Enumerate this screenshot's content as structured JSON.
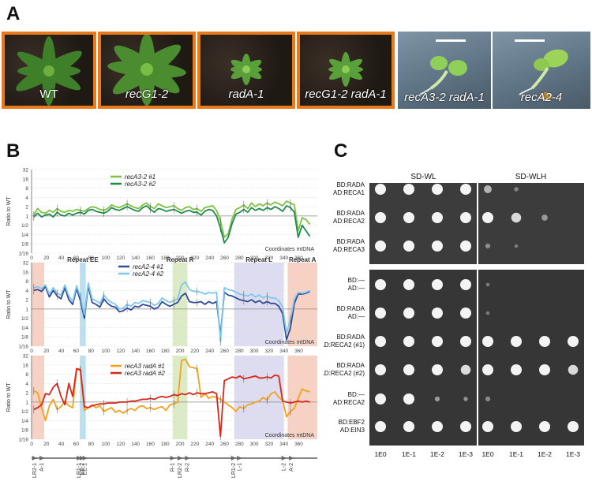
{
  "panel_a": {
    "letter": "A",
    "photos": [
      {
        "label": "WT",
        "italic": false
      },
      {
        "label": "recG1-2",
        "italic": true
      },
      {
        "label": "radA-1",
        "italic": true
      },
      {
        "label": "recG1-2 radA-1",
        "italic": true
      },
      {
        "label": "recA3-2 radA-1",
        "italic": true
      },
      {
        "label": "recA2-4",
        "italic": true
      }
    ]
  },
  "panel_b": {
    "letter": "B",
    "y_tick_labels": [
      "32",
      "16",
      "8",
      "4",
      "2",
      "1",
      "1/2",
      "1/4",
      "1/8",
      "1/16"
    ],
    "x_tick_labels": [
      "0",
      "20",
      "40",
      "60",
      "80",
      "100",
      "120",
      "140",
      "160",
      "180",
      "200",
      "220",
      "240",
      "260",
      "280",
      "300",
      "320",
      "340",
      "360"
    ],
    "y_axis_label": "Ratio to WT",
    "x_axis_label": "Coordinates mtDNA",
    "regions": [
      {
        "label": "",
        "start": 0,
        "end": 17,
        "color": "#f7d2c4"
      },
      {
        "label": "Repeat EE",
        "start": 65,
        "end": 73,
        "color": "#b8dff2"
      },
      {
        "label": "Repeat R",
        "start": 190,
        "end": 210,
        "color": "#dcebc6"
      },
      {
        "label": "Repeat L",
        "start": 273,
        "end": 340,
        "color": "#dedcf0"
      },
      {
        "label": "Repeat A",
        "start": 345,
        "end": 385,
        "color": "#f7d2c4"
      }
    ],
    "genome_markers": [
      "LR2-1",
      "A-1",
      "LR1-1",
      "EE-2",
      "EE-1",
      "R-1",
      "LR2-2",
      "R-2",
      "LR1-2",
      "L-1",
      "L-2",
      "A-2"
    ],
    "charts": [
      {
        "series": [
          {
            "name": "recA3-2 #1",
            "color": "#7cc242",
            "y": [
              0.1,
              0.8,
              0.4,
              0.3,
              0.6,
              0.4,
              0.8,
              0.5,
              0.4,
              0.6,
              0.5,
              0.7,
              0.6,
              0.5,
              0.8,
              1.0,
              0.9,
              0.7,
              0.6,
              0.8,
              1.2,
              1.0,
              0.9,
              1.1,
              1.3,
              1.1,
              0.9,
              0.8,
              1.2,
              1.4,
              1.0,
              0.8,
              1.3,
              1.1,
              0.9,
              1.0,
              1.1,
              0.8,
              0.6,
              0.9,
              1.0,
              0.7,
              0.8,
              0.5,
              0.9,
              1.0,
              1.1,
              0.6,
              -0.5,
              -2.3,
              -1.9,
              -0.3,
              0.7,
              0.9,
              1.2,
              0.8,
              1.4,
              1.0,
              1.3,
              1.1,
              1.4,
              1.2,
              1.5,
              1.3,
              1.1,
              1.6,
              1.4,
              1.2,
              -1.6,
              -0.2,
              -0.4,
              -0.9
            ]
          },
          {
            "name": "recA3-2 #2",
            "color": "#1f8a4c",
            "y": [
              -0.1,
              0.3,
              -0.1,
              0.1,
              0.2,
              -0.1,
              0.4,
              0.1,
              0.0,
              0.3,
              0.1,
              0.3,
              0.4,
              0.2,
              0.6,
              0.7,
              0.5,
              0.4,
              0.3,
              0.5,
              0.9,
              0.7,
              0.6,
              0.8,
              1.0,
              0.8,
              0.6,
              0.5,
              0.9,
              1.1,
              0.7,
              0.4,
              0.8,
              0.7,
              0.5,
              0.6,
              0.7,
              0.5,
              0.3,
              0.5,
              0.6,
              0.4,
              0.4,
              0.1,
              0.5,
              0.7,
              0.6,
              0.0,
              -1.3,
              -2.9,
              -2.3,
              -0.8,
              0.2,
              0.4,
              0.7,
              0.4,
              0.9,
              0.6,
              0.8,
              0.6,
              0.9,
              0.7,
              1.0,
              0.8,
              0.5,
              1.1,
              0.9,
              0.4,
              -2.3,
              -1.0,
              -1.6,
              -2.2
            ]
          }
        ]
      },
      {
        "series": [
          {
            "name": "recA2-4 #1",
            "color": "#2f4a9b",
            "y": [
              2.0,
              2.1,
              1.9,
              2.4,
              1.3,
              2.0,
              1.4,
              1.1,
              2.3,
              1.0,
              0.5,
              2.2,
              0.9,
              -1.0,
              2.5,
              0.7,
              0.5,
              0.2,
              1.1,
              0.6,
              0.3,
              0.2,
              -0.3,
              -0.2,
              0.1,
              -0.1,
              0.3,
              0.2,
              0.5,
              0.4,
              0.3,
              0.0,
              0.2,
              0.8,
              0.5,
              0.3,
              0.5,
              0.7,
              1.4,
              1.7,
              0.8,
              0.7,
              0.7,
              0.8,
              0.5,
              0.8,
              0.6,
              0.8,
              -2.8,
              1.8,
              1.5,
              1.4,
              1.2,
              1.0,
              0.9,
              0.8,
              1.0,
              0.7,
              0.9,
              0.6,
              0.8,
              0.6,
              0.6,
              0.3,
              -0.5,
              -3.3,
              -2.0,
              0.6,
              1.6,
              1.6,
              1.7,
              1.9
            ]
          },
          {
            "name": "recA2-4 #2",
            "color": "#7fc8ec",
            "y": [
              2.3,
              2.4,
              2.2,
              2.6,
              1.6,
              2.3,
              1.7,
              1.5,
              2.6,
              1.4,
              0.8,
              2.5,
              1.3,
              -0.6,
              2.8,
              1.1,
              0.9,
              0.6,
              1.5,
              1.0,
              0.7,
              0.5,
              0.0,
              0.1,
              0.5,
              0.3,
              0.7,
              0.6,
              0.9,
              0.8,
              0.7,
              0.4,
              0.6,
              1.2,
              0.9,
              0.7,
              0.9,
              1.1,
              2.6,
              2.9,
              2.1,
              1.9,
              1.9,
              1.8,
              1.6,
              1.8,
              1.7,
              1.8,
              -3.5,
              2.3,
              2.1,
              2.0,
              1.8,
              1.6,
              1.5,
              1.4,
              1.6,
              1.3,
              1.5,
              1.2,
              1.4,
              1.2,
              1.2,
              0.9,
              0.2,
              -2.6,
              -1.1,
              1.1,
              1.8,
              1.7,
              1.8,
              2.0
            ]
          }
        ]
      },
      {
        "series": [
          {
            "name": "recA3 radA #1",
            "color": "#f4a11c",
            "y": [
              1.2,
              1.0,
              -0.6,
              -2.0,
              -0.4,
              0.3,
              -0.8,
              -0.5,
              0.1,
              -0.4,
              -0.6,
              3.5,
              3.4,
              -0.9,
              -0.6,
              -0.3,
              -0.6,
              -0.4,
              -1.0,
              -0.8,
              -0.6,
              -1.1,
              -0.9,
              -1.2,
              -0.9,
              -0.7,
              -0.9,
              -0.5,
              -0.4,
              -0.7,
              -0.6,
              -0.8,
              -0.6,
              -0.5,
              -0.9,
              -0.3,
              -0.2,
              0.0,
              4.5,
              4.6,
              3.8,
              3.7,
              3.6,
              0.5,
              0.9,
              0.4,
              0.6,
              0.5,
              0.3,
              0.0,
              -0.3,
              -0.6,
              -1.0,
              -0.5,
              -0.7,
              -0.3,
              -0.2,
              0.0,
              0.1,
              0.5,
              0.2,
              0.9,
              1.1,
              0.5,
              0.2,
              -1.6,
              -1.0,
              -0.7,
              0.4,
              1.4,
              1.2,
              1.1
            ]
          },
          {
            "name": "recA3 radA #2",
            "color": "#d9261c",
            "y": [
              -0.8,
              -0.6,
              -0.3,
              0.9,
              0.8,
              1.6,
              2.0,
              0.6,
              -0.3,
              2.0,
              0.6,
              3.6,
              3.5,
              -0.5,
              -0.6,
              -0.4,
              -0.3,
              -0.2,
              -0.2,
              -0.1,
              -0.1,
              -0.1,
              0.0,
              0.0,
              0.0,
              0.1,
              0.1,
              0.2,
              0.3,
              0.3,
              0.4,
              0.3,
              0.5,
              0.6,
              0.5,
              0.6,
              0.8,
              0.7,
              0.9,
              0.8,
              1.0,
              0.8,
              1.0,
              0.9,
              0.9,
              1.0,
              1.1,
              0.9,
              -3.7,
              2.3,
              2.5,
              2.7,
              2.6,
              2.8,
              2.5,
              2.6,
              2.7,
              2.8,
              2.6,
              2.6,
              2.7,
              2.6,
              2.9,
              2.8,
              0.1,
              0.0,
              -0.1,
              0.0,
              0.1,
              0.0,
              0.1,
              0.0
            ]
          }
        ]
      }
    ]
  },
  "panel_c": {
    "letter": "C",
    "column_headers": [
      "SD-WL",
      "SD-WLH"
    ],
    "dilution_labels": [
      "1E0",
      "1E-1",
      "1E-2",
      "1E-3",
      "1E0",
      "1E-1",
      "1E-2",
      "1E-3"
    ],
    "rows": [
      {
        "bd": "BD:RADA",
        "ad": "AD:RECA1",
        "wl": [
          1,
          1,
          1,
          1
        ],
        "wlh": [
          0.5,
          0.15,
          0,
          0
        ]
      },
      {
        "bd": "BD:RADA",
        "ad": "AD:RECA2",
        "wl": [
          1,
          1,
          1,
          1
        ],
        "wlh": [
          1,
          0.8,
          0.3,
          0
        ]
      },
      {
        "bd": "BD:RADA",
        "ad": "AD:RECA3",
        "wl": [
          1,
          1,
          1,
          1
        ],
        "wlh": [
          0.2,
          0.1,
          0,
          0
        ]
      },
      {
        "bd": "BD:—",
        "ad": "AD:—",
        "wl": [
          1,
          1,
          1,
          1
        ],
        "wlh": [
          0.1,
          0,
          0,
          0
        ]
      },
      {
        "bd": "BD:RADA",
        "ad": "AD:—",
        "wl": [
          1,
          1,
          1,
          1
        ],
        "wlh": [
          0.1,
          0,
          0,
          0
        ]
      },
      {
        "bd": "BD:RADA",
        "ad": "AD:RECA2 (#1)",
        "wl": [
          1,
          1,
          1,
          1
        ],
        "wlh": [
          1,
          1,
          1,
          1
        ]
      },
      {
        "bd": "BD:RADA",
        "ad": "AD:RECA2 (#2)",
        "wl": [
          1,
          1,
          1,
          0.8
        ],
        "wlh": [
          1,
          1,
          1,
          0.8
        ]
      },
      {
        "bd": "BD:—",
        "ad": "AD:RECA2",
        "wl": [
          1,
          1,
          0.2,
          0.15
        ],
        "wlh": [
          0.2,
          0,
          0,
          0
        ]
      },
      {
        "bd": "BD:EBF2",
        "ad": "AD:EIN3",
        "wl": [
          1,
          1,
          1,
          1
        ],
        "wlh": [
          1,
          1,
          1,
          1
        ]
      }
    ]
  }
}
